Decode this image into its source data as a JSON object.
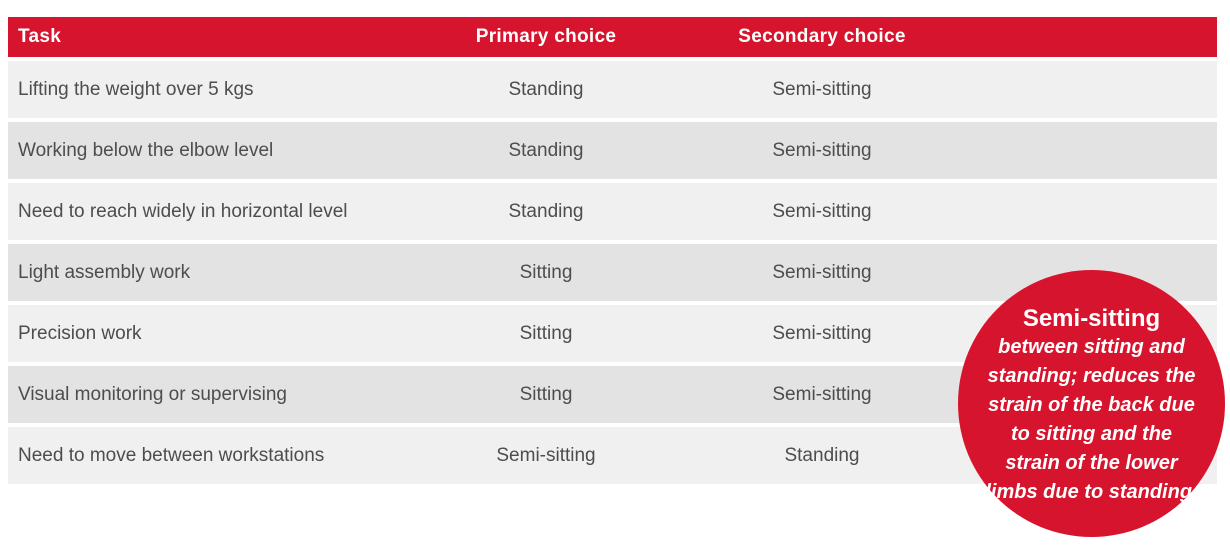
{
  "colors": {
    "accent_red": "#d7142d",
    "row_light": "#f1f0f0",
    "row_dark": "#e4e3e3",
    "row_text": "#4d4d4d",
    "header_text": "#ffffff"
  },
  "table": {
    "headers": [
      {
        "label": "Task"
      },
      {
        "label": "Primary choice"
      },
      {
        "label": "Secondary choice"
      }
    ],
    "rows": [
      {
        "task": "Lifting the weight over 5 kgs",
        "primary": "Standing",
        "secondary": "Semi-sitting"
      },
      {
        "task": "Working below the elbow level",
        "primary": "Standing",
        "secondary": "Semi-sitting"
      },
      {
        "task": "Need to reach widely in horizontal level",
        "primary": "Standing",
        "secondary": "Semi-sitting"
      },
      {
        "task": "Light assembly work",
        "primary": "Sitting",
        "secondary": "Semi-sitting"
      },
      {
        "task": "Precision work",
        "primary": "Sitting",
        "secondary": "Semi-sitting"
      },
      {
        "task": "Visual monitoring or supervising",
        "primary": "Sitting",
        "secondary": "Semi-sitting"
      },
      {
        "task": "Need to move between workstations",
        "primary": "Semi-sitting",
        "secondary": "Standing"
      }
    ]
  },
  "callout": {
    "title": "Semi-sitting",
    "body": "between sitting and standing; reduces the strain of the back due to sitting and the strain of the lower limbs due to standing."
  }
}
